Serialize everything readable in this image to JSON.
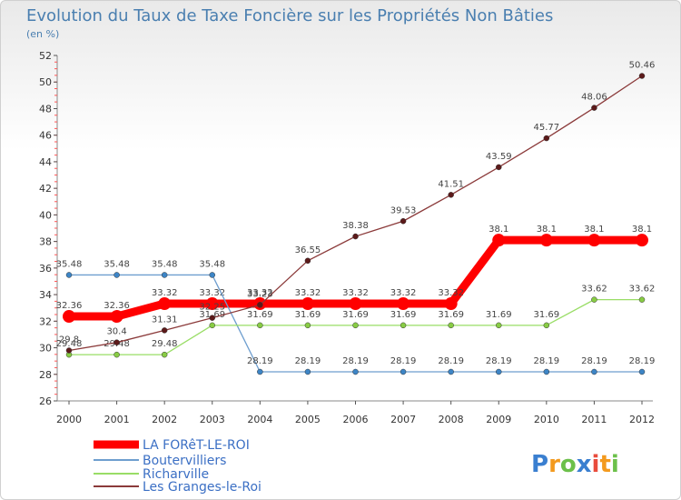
{
  "chart_data": {
    "type": "line",
    "title": "Evolution du Taux de Taxe Foncière sur les Propriétés Non Bâties",
    "subtitle": "(en %)",
    "x": [
      "2000",
      "2001",
      "2002",
      "2003",
      "2004",
      "2005",
      "2006",
      "2007",
      "2008",
      "2009",
      "2010",
      "2011",
      "2012"
    ],
    "ylim": [
      26,
      52
    ],
    "yticks": [
      26,
      28,
      30,
      32,
      34,
      36,
      38,
      40,
      42,
      44,
      46,
      48,
      50,
      52
    ],
    "series": [
      {
        "name": "LA FORêT-LE-ROI",
        "color": "#ff0000",
        "marker": "#ff0000",
        "values": [
          32.36,
          32.36,
          33.32,
          33.32,
          33.32,
          33.32,
          33.32,
          33.32,
          33.32,
          38.1,
          38.1,
          38.1,
          38.1
        ],
        "labels": [
          "32.36",
          "32.36",
          "33.32",
          "33.32",
          "33.32",
          "33.32",
          "33.32",
          "33.32",
          "33.32",
          "38.1",
          "38.1",
          "38.1",
          "38.1"
        ]
      },
      {
        "name": "Boutervilliers",
        "color": "#6e9ecf",
        "marker": "#3d85c6",
        "values": [
          35.48,
          35.48,
          35.48,
          35.48,
          28.19,
          28.19,
          28.19,
          28.19,
          28.19,
          28.19,
          28.19,
          28.19,
          28.19
        ],
        "labels": [
          "35.48",
          "35.48",
          "35.48",
          "35.48",
          "28.19",
          "28.19",
          "28.19",
          "28.19",
          "28.19",
          "28.19",
          "28.19",
          "28.19",
          "28.19"
        ]
      },
      {
        "name": "Richarville",
        "color": "#99dd66",
        "marker": "#88cc44",
        "values": [
          29.48,
          29.48,
          29.48,
          31.69,
          31.69,
          31.69,
          31.69,
          31.69,
          31.69,
          31.69,
          31.69,
          33.62,
          33.62
        ],
        "labels": [
          "29.48",
          "29.48",
          "29.48",
          "31.69",
          "31.69",
          "31.69",
          "31.69",
          "31.69",
          "31.69",
          "31.69",
          "31.69",
          "33.62",
          "33.62"
        ]
      },
      {
        "name": "Les Granges-le-Roi",
        "color": "#8b3a3a",
        "marker": "#5c1a1a",
        "values": [
          29.8,
          30.4,
          31.31,
          32.25,
          33.23,
          36.55,
          38.38,
          39.53,
          41.51,
          43.59,
          45.77,
          48.06,
          50.46
        ],
        "labels": [
          "29.8",
          "30.4",
          "31.31",
          "32.25",
          "33.23",
          "36.55",
          "38.38",
          "39.53",
          "41.51",
          "43.59",
          "45.77",
          "48.06",
          "50.46"
        ]
      }
    ]
  },
  "brand": {
    "letters": [
      "P",
      "r",
      "o",
      "x",
      "i",
      "t",
      "i"
    ],
    "colors": [
      "#3a7fd0",
      "#f39a1e",
      "#6cc04a",
      "#3a7fd0",
      "#e94c3d",
      "#f39a1e",
      "#6cc04a"
    ]
  }
}
